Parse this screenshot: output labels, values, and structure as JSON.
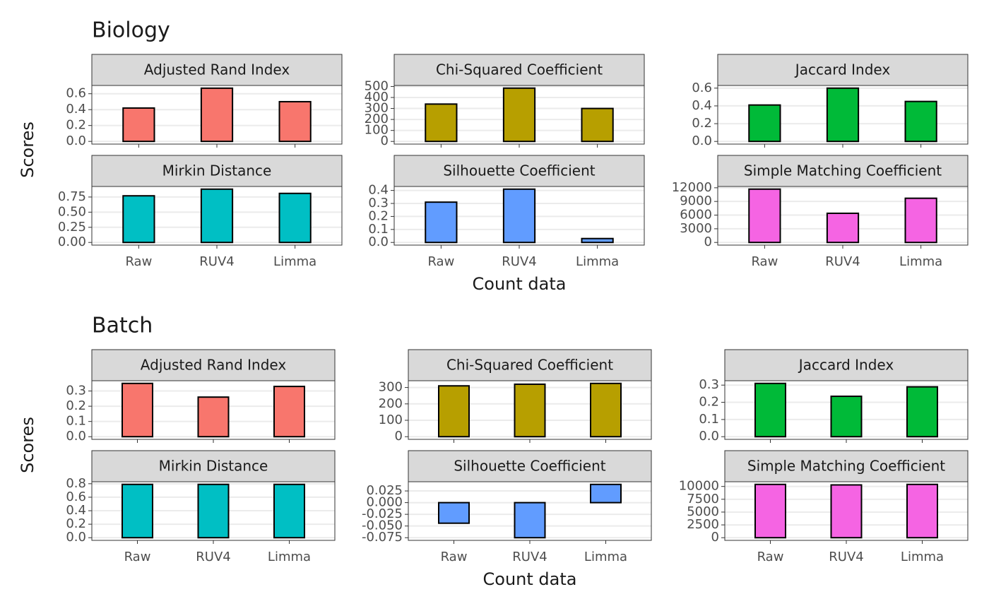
{
  "chart_data": [
    {
      "type": "bar",
      "title": "Biology",
      "ylabel": "Scores",
      "xlabel": "Count data",
      "categories": [
        "Raw",
        "RUV4",
        "Limma"
      ],
      "panels": [
        {
          "title": "Adjusted Rand Index",
          "color": "#F8766D",
          "values": [
            0.42,
            0.67,
            0.5
          ],
          "ylim": [
            -0.034,
            0.704
          ],
          "yticks": [
            {
              "value": 0,
              "label": "0.0"
            },
            0.2,
            0.4,
            0.6
          ]
        },
        {
          "title": "Chi-Squared Coefficient",
          "color": "#B79F00",
          "values": [
            340,
            485,
            300
          ],
          "ylim": [
            -24.25,
            509.25
          ],
          "yticks": [
            0,
            100,
            200,
            300,
            400,
            500
          ]
        },
        {
          "title": "Jaccard Index",
          "color": "#00BA38",
          "values": [
            0.41,
            0.6,
            0.45
          ],
          "ylim": [
            -0.03,
            0.63
          ],
          "yticks": [
            {
              "value": 0,
              "label": "0.0"
            },
            0.2,
            0.4,
            0.6
          ]
        },
        {
          "title": "Mirkin Distance",
          "color": "#00BFC4",
          "values": [
            0.77,
            0.88,
            0.81
          ],
          "ylim": [
            -0.044,
            0.924
          ],
          "yticks": [
            {
              "value": 0,
              "label": "0.00"
            },
            0.25,
            {
              "value": 0.5,
              "label": "0.50"
            },
            0.75
          ]
        },
        {
          "title": "Silhouette Coefficient",
          "color": "#619CFF",
          "values": [
            0.31,
            0.41,
            0.03
          ],
          "ylim": [
            -0.0205,
            0.4305
          ],
          "yticks": [
            {
              "value": 0,
              "label": "0.0"
            },
            0.1,
            0.2,
            0.3,
            0.4
          ]
        },
        {
          "title": "Simple Matching Coefficient",
          "color": "#F564E3",
          "values": [
            11700,
            6400,
            9700
          ],
          "ylim": [
            -585,
            12285
          ],
          "yticks": [
            0,
            3000,
            6000,
            9000,
            12000
          ]
        }
      ]
    },
    {
      "type": "bar",
      "title": "Batch",
      "ylabel": "Scores",
      "xlabel": "Count data",
      "categories": [
        "Raw",
        "RUV4",
        "Limma"
      ],
      "panels": [
        {
          "title": "Adjusted Rand Index",
          "color": "#F8766D",
          "values": [
            0.35,
            0.26,
            0.33
          ],
          "ylim": [
            -0.0175,
            0.3675
          ],
          "yticks": [
            {
              "value": 0,
              "label": "0.0"
            },
            0.1,
            0.2,
            0.3
          ]
        },
        {
          "title": "Chi-Squared Coefficient",
          "color": "#B79F00",
          "values": [
            310,
            320,
            325
          ],
          "ylim": [
            -16.25,
            341.25
          ],
          "yticks": [
            0,
            100,
            200,
            300
          ]
        },
        {
          "title": "Jaccard Index",
          "color": "#00BA38",
          "values": [
            0.31,
            0.235,
            0.29
          ],
          "ylim": [
            -0.0155,
            0.3255
          ],
          "yticks": [
            {
              "value": 0,
              "label": "0.0"
            },
            0.1,
            0.2,
            0.3
          ]
        },
        {
          "title": "Mirkin Distance",
          "color": "#00BFC4",
          "values": [
            0.79,
            0.79,
            0.79
          ],
          "ylim": [
            -0.0395,
            0.8295
          ],
          "yticks": [
            {
              "value": 0,
              "label": "0.0"
            },
            0.2,
            0.4,
            0.6,
            0.8
          ]
        },
        {
          "title": "Silhouette Coefficient",
          "color": "#619CFF",
          "values": [
            -0.044,
            -0.075,
            0.039
          ],
          "ylim": [
            -0.0807,
            0.0447
          ],
          "yticks": [
            -0.075,
            {
              "value": -0.05,
              "label": "-0.050"
            },
            -0.025,
            {
              "value": 0,
              "label": "0.000"
            },
            0.025
          ]
        },
        {
          "title": "Simple Matching Coefficient",
          "color": "#F564E3",
          "values": [
            10400,
            10300,
            10400
          ],
          "ylim": [
            -520,
            10920
          ],
          "yticks": [
            0,
            2500,
            5000,
            7500,
            10000
          ]
        }
      ]
    }
  ]
}
